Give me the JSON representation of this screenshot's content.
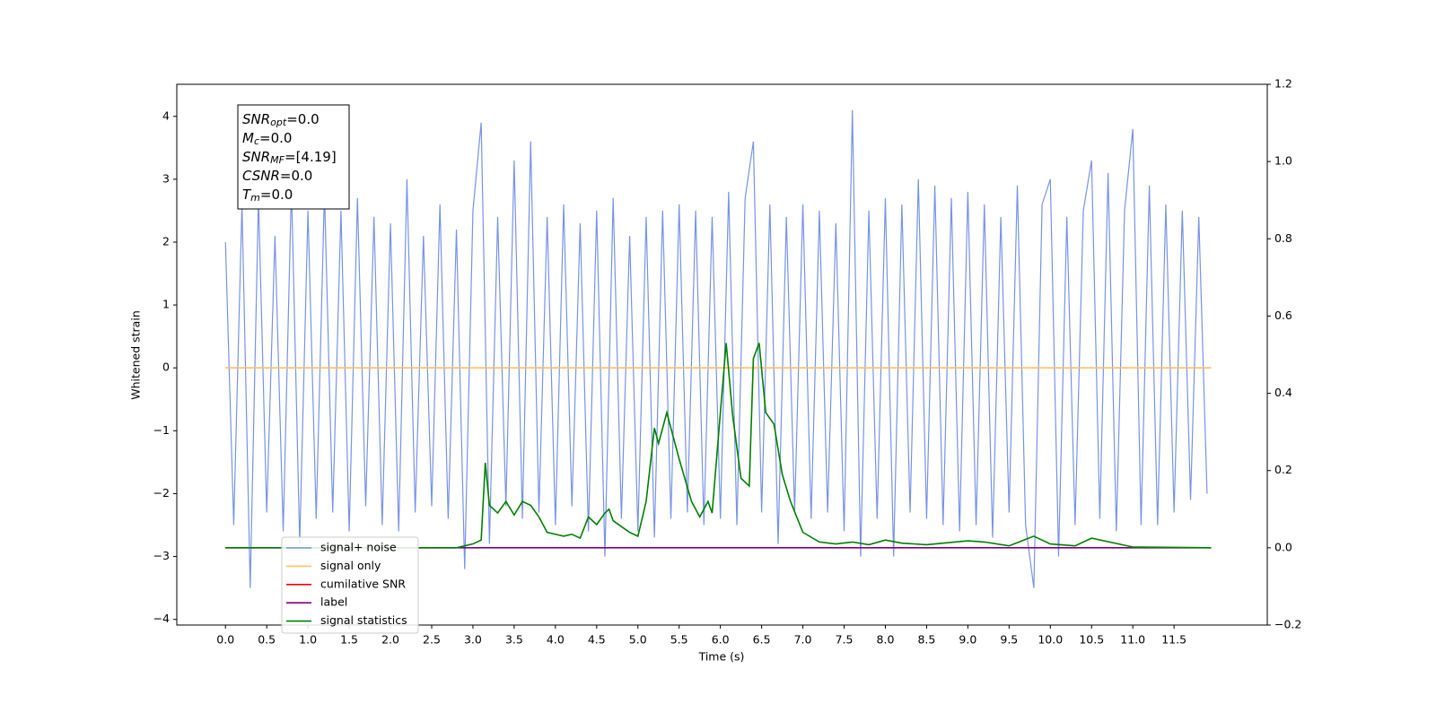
{
  "chart_data": {
    "type": "line",
    "xlabel": "Time (s)",
    "ylabel": "Whitened strain",
    "xlim": [
      -0.59,
      12.63
    ],
    "ylim": [
      -4.09,
      4.51
    ],
    "y2lim": [
      -0.2,
      1.2
    ],
    "xticks": [
      {
        "value": 0,
        "label": "0.0"
      },
      {
        "value": 0.5,
        "label": "0.5"
      },
      {
        "value": 1,
        "label": "1.0"
      },
      {
        "value": 1.5,
        "label": "1.5"
      },
      {
        "value": 2,
        "label": "2.0"
      },
      {
        "value": 2.5,
        "label": "2.5"
      },
      {
        "value": 3,
        "label": "3.0"
      },
      {
        "value": 3.5,
        "label": "3.5"
      },
      {
        "value": 4,
        "label": "4.0"
      },
      {
        "value": 4.5,
        "label": "4.5"
      },
      {
        "value": 5,
        "label": "5.0"
      },
      {
        "value": 5.5,
        "label": "5.5"
      },
      {
        "value": 6,
        "label": "6.0"
      },
      {
        "value": 6.5,
        "label": "6.5"
      },
      {
        "value": 7,
        "label": "7.0"
      },
      {
        "value": 7.5,
        "label": "7.5"
      },
      {
        "value": 8,
        "label": "8.0"
      },
      {
        "value": 8.5,
        "label": "8.5"
      },
      {
        "value": 9,
        "label": "9.0"
      },
      {
        "value": 9.5,
        "label": "9.5"
      },
      {
        "value": 10,
        "label": "10.0"
      },
      {
        "value": 10.5,
        "label": "10.5"
      },
      {
        "value": 11,
        "label": "11.0"
      },
      {
        "value": 11.5,
        "label": "11.5"
      }
    ],
    "yticks": [
      {
        "value": -4,
        "label": "−4"
      },
      {
        "value": -3,
        "label": "−3"
      },
      {
        "value": -2,
        "label": "−2"
      },
      {
        "value": -1,
        "label": "−1"
      },
      0,
      1,
      2,
      3,
      4
    ],
    "y2ticks": [
      {
        "value": -0.2,
        "label": "−0.2"
      },
      {
        "value": 0,
        "label": "0.0"
      },
      0.2,
      0.4,
      0.6,
      0.8,
      {
        "value": 1,
        "label": "1.0"
      },
      1.2
    ],
    "annotation": [
      {
        "name": "SNR",
        "sub": "opt",
        "text": "=0.0"
      },
      {
        "name": "M",
        "sub": "c",
        "text": "=0.0"
      },
      {
        "name": "SNR",
        "sub": "MF",
        "text": "=[4.19]"
      },
      {
        "name": "CSNR",
        "text": "=0.0"
      },
      {
        "name": "T",
        "sub": "m",
        "text": "=0.0"
      }
    ],
    "series": [
      {
        "name": "signal+ noise",
        "color": "#7793e6",
        "axis": "y",
        "x": [
          0,
          0.1,
          0.2,
          0.3,
          0.4,
          0.5,
          0.6,
          0.7,
          0.8,
          0.9,
          1,
          1.1,
          1.2,
          1.3,
          1.4,
          1.5,
          1.6,
          1.7,
          1.8,
          1.9,
          2,
          2.1,
          2.2,
          2.3,
          2.4,
          2.5,
          2.6,
          2.7,
          2.8,
          2.9,
          3,
          3.1,
          3.2,
          3.3,
          3.4,
          3.5,
          3.6,
          3.7,
          3.8,
          3.9,
          4,
          4.1,
          4.2,
          4.3,
          4.4,
          4.5,
          4.6,
          4.7,
          4.8,
          4.9,
          5,
          5.1,
          5.2,
          5.3,
          5.4,
          5.5,
          5.6,
          5.7,
          5.8,
          5.9,
          6,
          6.1,
          6.2,
          6.3,
          6.4,
          6.5,
          6.6,
          6.7,
          6.8,
          6.9,
          7,
          7.1,
          7.2,
          7.3,
          7.4,
          7.5,
          7.6,
          7.7,
          7.8,
          7.9,
          8,
          8.1,
          8.2,
          8.3,
          8.4,
          8.5,
          8.6,
          8.7,
          8.8,
          8.9,
          9,
          9.1,
          9.2,
          9.3,
          9.4,
          9.5,
          9.6,
          9.7,
          9.8,
          9.9,
          10,
          10.1,
          10.2,
          10.3,
          10.4,
          10.5,
          10.6,
          10.7,
          10.8,
          10.9,
          11,
          11.1,
          11.2,
          11.3,
          11.4,
          11.5,
          11.6,
          11.7,
          11.8,
          11.9
        ],
        "values": [
          2.0,
          -2.5,
          2.6,
          -3.5,
          2.7,
          -2.3,
          2.1,
          -2.6,
          2.9,
          -2.8,
          2.5,
          -2.4,
          2.8,
          -2.3,
          2.5,
          -2.6,
          2.7,
          -2.2,
          2.4,
          -2.5,
          2.3,
          -2.6,
          3.0,
          -2.3,
          2.1,
          -2.2,
          2.6,
          -2.4,
          2.2,
          -3.2,
          2.5,
          3.9,
          -2.8,
          2.4,
          -2.2,
          3.3,
          -2.4,
          3.6,
          -2.3,
          2.4,
          -2.5,
          2.6,
          -2.2,
          2.3,
          -2.6,
          2.5,
          -3.0,
          2.7,
          -2.4,
          2.1,
          -2.6,
          2.4,
          -2.7,
          2.5,
          -2.4,
          2.6,
          -2.3,
          2.5,
          -2.5,
          2.4,
          -2.4,
          2.8,
          -2.5,
          2.7,
          3.6,
          -2.3,
          2.6,
          -2.8,
          2.4,
          -2.3,
          2.6,
          -2.4,
          2.5,
          -2.3,
          2.3,
          -2.6,
          4.1,
          -3.0,
          2.5,
          -2.4,
          2.7,
          -3.0,
          2.6,
          -2.3,
          3.0,
          -2.4,
          2.9,
          -2.5,
          2.7,
          -2.6,
          2.8,
          -2.5,
          2.6,
          -2.7,
          2.4,
          -2.3,
          2.9,
          -2.5,
          -3.5,
          2.6,
          3.0,
          -3.0,
          2.4,
          -2.5,
          2.5,
          3.3,
          -2.4,
          3.1,
          -2.6,
          2.5,
          3.8,
          -2.5,
          2.9,
          -2.5,
          2.6,
          -2.3,
          2.5,
          -2.1,
          2.4,
          -2.0
        ]
      },
      {
        "name": "signal only",
        "color": "#ffbf66",
        "axis": "y",
        "x": [
          0,
          11.95
        ],
        "values": [
          0,
          0
        ]
      },
      {
        "name": "cumilative SNR",
        "color": "#ff0000",
        "axis": "y2",
        "x": [],
        "values": []
      },
      {
        "name": "label",
        "color": "#800080",
        "axis": "y2",
        "x": [
          0,
          11.95
        ],
        "values": [
          0,
          0
        ]
      },
      {
        "name": "signal statistics",
        "color": "#008000",
        "axis": "y2",
        "x": [
          0,
          2.8,
          2.9,
          3,
          3.1,
          3.15,
          3.2,
          3.3,
          3.4,
          3.5,
          3.6,
          3.7,
          3.8,
          3.9,
          4,
          4.1,
          4.2,
          4.3,
          4.4,
          4.5,
          4.6,
          4.65,
          4.7,
          4.9,
          5,
          5.1,
          5.2,
          5.25,
          5.35,
          5.5,
          5.65,
          5.75,
          5.85,
          5.9,
          6,
          6.07,
          6.15,
          6.25,
          6.35,
          6.4,
          6.47,
          6.55,
          6.65,
          6.75,
          6.85,
          7,
          7.2,
          7.4,
          7.6,
          7.8,
          8,
          8.2,
          8.5,
          9,
          9.2,
          9.5,
          9.8,
          10,
          10.3,
          10.5,
          11,
          11.95
        ],
        "values": [
          0,
          0,
          0.005,
          0.01,
          0.02,
          0.22,
          0.11,
          0.09,
          0.12,
          0.085,
          0.12,
          0.11,
          0.08,
          0.04,
          0.035,
          0.03,
          0.035,
          0.025,
          0.08,
          0.06,
          0.09,
          0.1,
          0.07,
          0.04,
          0.03,
          0.12,
          0.31,
          0.27,
          0.35,
          0.23,
          0.12,
          0.08,
          0.12,
          0.09,
          0.35,
          0.53,
          0.34,
          0.18,
          0.16,
          0.49,
          0.53,
          0.35,
          0.32,
          0.19,
          0.12,
          0.04,
          0.015,
          0.01,
          0.015,
          0.008,
          0.02,
          0.012,
          0.008,
          0.018,
          0.015,
          0.005,
          0.03,
          0.01,
          0.005,
          0.025,
          0.002,
          0
        ]
      }
    ]
  }
}
